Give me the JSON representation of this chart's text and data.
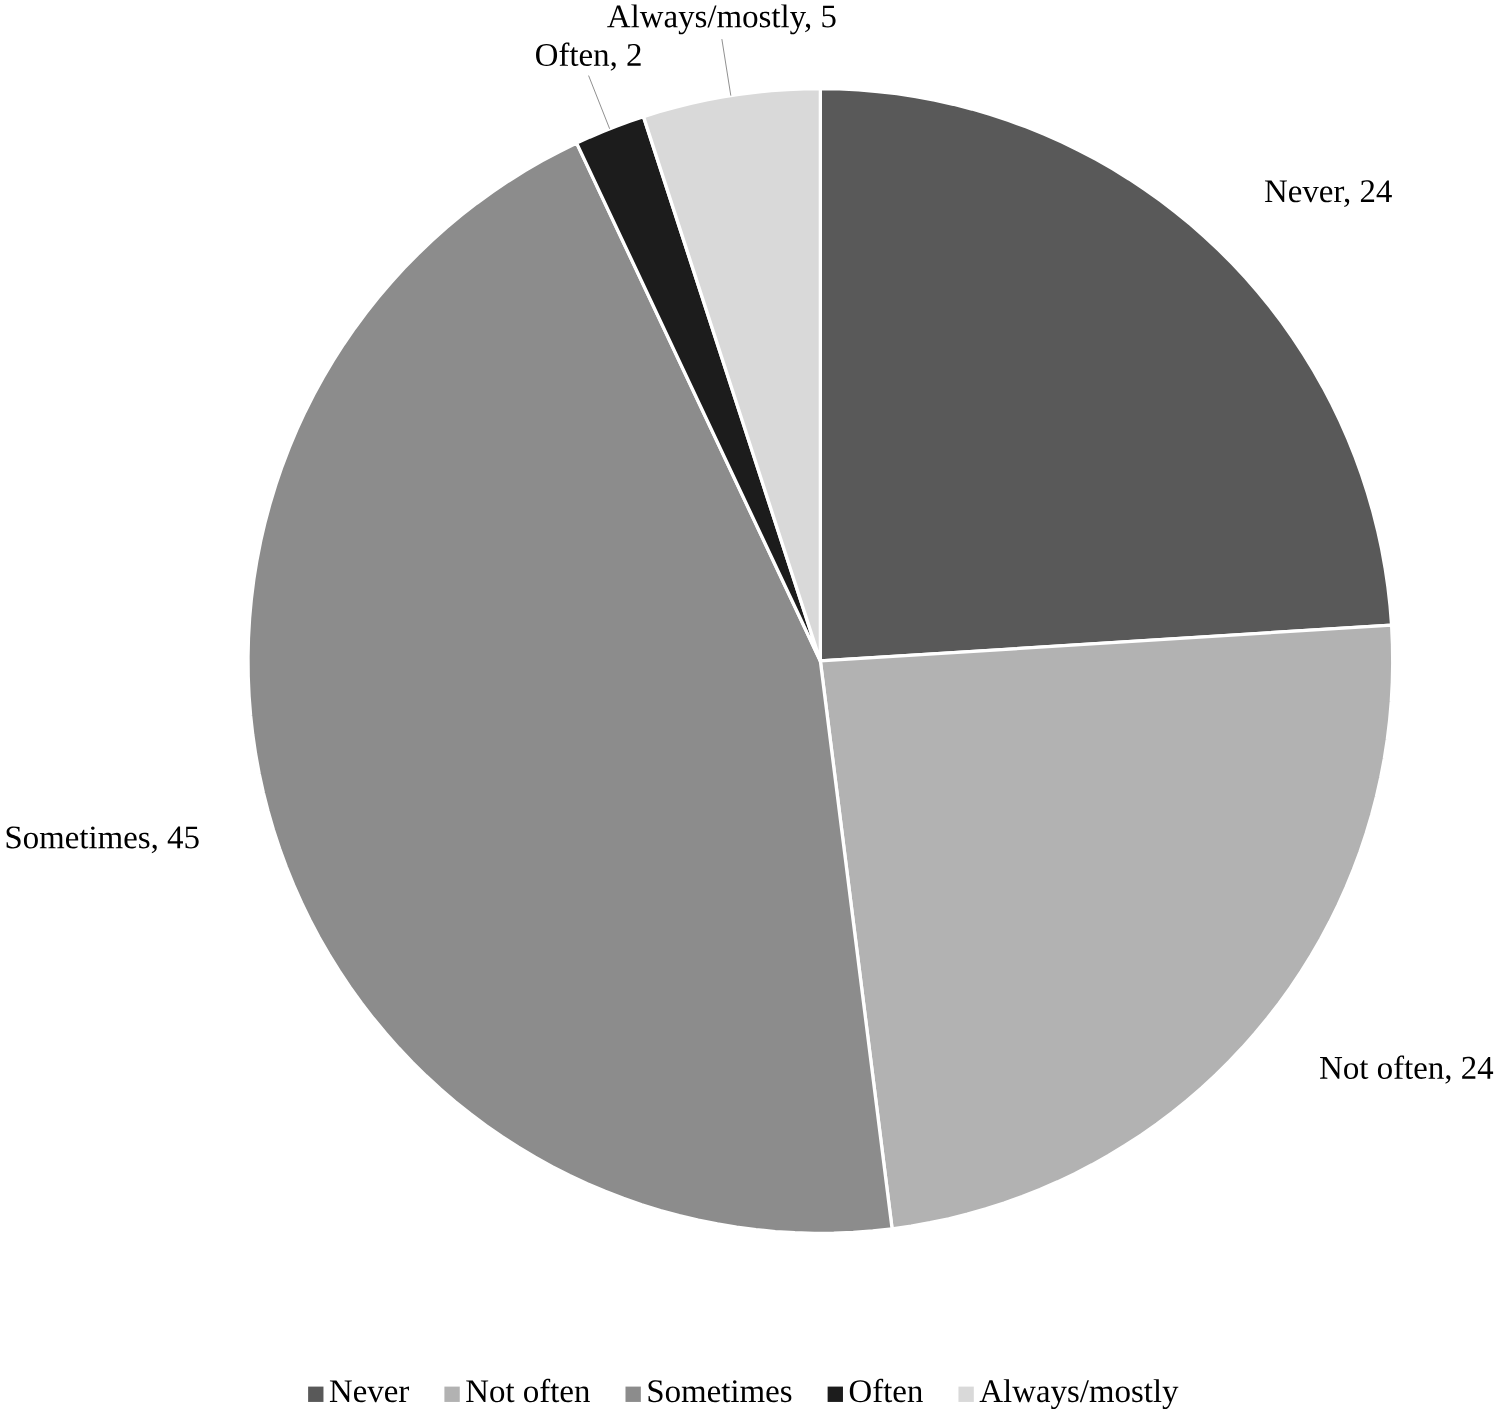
{
  "chart_data": {
    "type": "pie",
    "categories": [
      "Never",
      "Not often",
      "Sometimes",
      "Often",
      "Always/mostly"
    ],
    "values": [
      24,
      24,
      45,
      2,
      5
    ],
    "colors": [
      "#595959",
      "#b2b2b2",
      "#8c8c8c",
      "#1c1c1c",
      "#d9d9d9"
    ],
    "value_labels": [
      "Never, 24",
      "Not often, 24",
      "Sometimes, 45",
      "Often, 2",
      "Always/mostly, 5"
    ],
    "legend": "bottom"
  }
}
